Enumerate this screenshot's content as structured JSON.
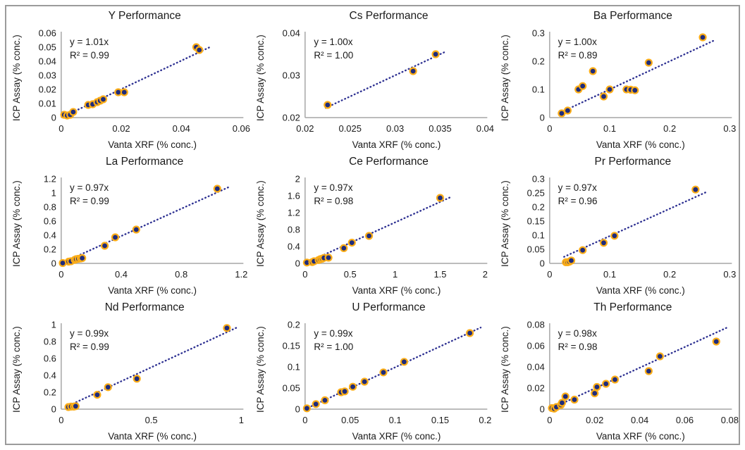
{
  "figure": {
    "background": "#ffffff",
    "border_color": "#9b9b9b"
  },
  "style": {
    "point_fill": "#1f2c7c",
    "point_ring": "#fbad18",
    "trendline_color": "#2e3192",
    "axis_color": "#a6a6a6",
    "text_color": "#1a1a1a"
  },
  "chart_data": [
    {
      "type": "scatter",
      "element": "Y",
      "title": "Y Performance",
      "equation": "y = 1.01x",
      "r_squared": "R² = 0.99",
      "slope": 1.01,
      "xlabel": "Vanta XRF (% conc.)",
      "ylabel": "ICP Assay (% conc.)",
      "xlim": [
        0,
        0.06
      ],
      "ylim": [
        0,
        0.06
      ],
      "xtick_values": [
        0,
        0.02,
        0.04,
        0.06
      ],
      "xtick_labels": [
        "0",
        "0.02",
        "0.04",
        "0.06"
      ],
      "ytick_values": [
        0,
        0.01,
        0.02,
        0.03,
        0.04,
        0.05,
        0.06
      ],
      "ytick_labels": [
        "0",
        "0.01",
        "0.02",
        "0.03",
        "0.04",
        "0.05",
        "0.06"
      ],
      "grid": false,
      "legend": false,
      "points": [
        [
          0.001,
          0.002
        ],
        [
          0.002,
          0.0015
        ],
        [
          0.003,
          0.002
        ],
        [
          0.004,
          0.004
        ],
        [
          0.009,
          0.009
        ],
        [
          0.0105,
          0.0095
        ],
        [
          0.012,
          0.011
        ],
        [
          0.013,
          0.012
        ],
        [
          0.014,
          0.013
        ],
        [
          0.019,
          0.018
        ],
        [
          0.021,
          0.018
        ],
        [
          0.045,
          0.05
        ],
        [
          0.046,
          0.048
        ]
      ]
    },
    {
      "type": "scatter",
      "element": "Cs",
      "title": "Cs Performance",
      "equation": "y = 1.00x",
      "r_squared": "R² = 1.00",
      "slope": 1.0,
      "xlabel": "Vanta XRF (% conc.)",
      "ylabel": "ICP Assay (% conc.)",
      "xlim": [
        0.02,
        0.04
      ],
      "ylim": [
        0.02,
        0.04
      ],
      "xtick_values": [
        0.02,
        0.025,
        0.03,
        0.035,
        0.04
      ],
      "xtick_labels": [
        "0.02",
        "0.025",
        "0.03",
        "0.035",
        "0.04"
      ],
      "ytick_values": [
        0.02,
        0.03,
        0.04
      ],
      "ytick_labels": [
        "0.02",
        "0.03",
        "0.04"
      ],
      "grid": false,
      "legend": false,
      "points": [
        [
          0.0225,
          0.023
        ],
        [
          0.032,
          0.031
        ],
        [
          0.0345,
          0.035
        ]
      ]
    },
    {
      "type": "scatter",
      "element": "Ba",
      "title": "Ba Performance",
      "equation": "y = 1.00x",
      "r_squared": "R² = 0.89",
      "slope": 1.0,
      "xlabel": "Vanta XRF (% conc.)",
      "ylabel": "ICP Assay (% conc.)",
      "xlim": [
        0,
        0.3
      ],
      "ylim": [
        0,
        0.3
      ],
      "xtick_values": [
        0,
        0.1,
        0.2,
        0.3
      ],
      "xtick_labels": [
        "0",
        "0.1",
        "0.2",
        "0.3"
      ],
      "ytick_values": [
        0,
        0.1,
        0.2,
        0.3
      ],
      "ytick_labels": [
        "0",
        "0.1",
        "0.2",
        "0.3"
      ],
      "grid": false,
      "legend": false,
      "points": [
        [
          0.02,
          0.015
        ],
        [
          0.03,
          0.025
        ],
        [
          0.048,
          0.1
        ],
        [
          0.055,
          0.112
        ],
        [
          0.072,
          0.165
        ],
        [
          0.09,
          0.075
        ],
        [
          0.1,
          0.1
        ],
        [
          0.128,
          0.1
        ],
        [
          0.135,
          0.099
        ],
        [
          0.142,
          0.097
        ],
        [
          0.165,
          0.195
        ],
        [
          0.255,
          0.285
        ]
      ]
    },
    {
      "type": "scatter",
      "element": "La",
      "title": "La Performance",
      "equation": "y = 0.97x",
      "r_squared": "R² = 0.99",
      "slope": 0.97,
      "xlabel": "Vanta XRF (% conc.)",
      "ylabel": "ICP Assay (% conc.)",
      "xlim": [
        0,
        1.2
      ],
      "ylim": [
        0,
        1.2
      ],
      "xtick_values": [
        0,
        0.4,
        0.8,
        1.2
      ],
      "xtick_labels": [
        "0",
        "0.4",
        "0.8",
        "1.2"
      ],
      "ytick_values": [
        0,
        0.2,
        0.4,
        0.6,
        0.8,
        1,
        1.2
      ],
      "ytick_labels": [
        "0",
        "0.2",
        "0.4",
        "0.6",
        "0.8",
        "1",
        "1.2"
      ],
      "grid": false,
      "legend": false,
      "points": [
        [
          0.01,
          0.005
        ],
        [
          0.05,
          0.025
        ],
        [
          0.065,
          0.03
        ],
        [
          0.09,
          0.05
        ],
        [
          0.1,
          0.06
        ],
        [
          0.115,
          0.065
        ],
        [
          0.13,
          0.07
        ],
        [
          0.14,
          0.075
        ],
        [
          0.29,
          0.25
        ],
        [
          0.36,
          0.37
        ],
        [
          0.5,
          0.48
        ],
        [
          1.04,
          1.06
        ]
      ]
    },
    {
      "type": "scatter",
      "element": "Ce",
      "title": "Ce Performance",
      "equation": "y = 0.97x",
      "r_squared": "R² = 0.98",
      "slope": 0.97,
      "xlabel": "Vanta XRF (% conc.)",
      "ylabel": "ICP Assay (% conc.)",
      "xlim": [
        0,
        2
      ],
      "ylim": [
        0,
        2
      ],
      "xtick_values": [
        0,
        0.5,
        1,
        1.5,
        2
      ],
      "xtick_labels": [
        "0",
        "0.5",
        "1",
        "1.5",
        "2"
      ],
      "ytick_values": [
        0,
        0.4,
        0.8,
        1.2,
        1.6,
        2
      ],
      "ytick_labels": [
        "0",
        "0.4",
        "0.8",
        "1.2",
        "1.6",
        "2"
      ],
      "grid": false,
      "legend": false,
      "points": [
        [
          0.02,
          0.02
        ],
        [
          0.08,
          0.03
        ],
        [
          0.1,
          0.05
        ],
        [
          0.15,
          0.08
        ],
        [
          0.17,
          0.1
        ],
        [
          0.19,
          0.11
        ],
        [
          0.21,
          0.13
        ],
        [
          0.26,
          0.135
        ],
        [
          0.43,
          0.36
        ],
        [
          0.52,
          0.49
        ],
        [
          0.71,
          0.65
        ],
        [
          1.5,
          1.55
        ]
      ]
    },
    {
      "type": "scatter",
      "element": "Pr",
      "title": "Pr Performance",
      "equation": "y = 0.97x",
      "r_squared": "R² = 0.96",
      "slope": 0.97,
      "xlabel": "Vanta XRF (% conc.)",
      "ylabel": "ICP Assay (% conc.)",
      "xlim": [
        0,
        0.3
      ],
      "ylim": [
        0,
        0.3
      ],
      "xtick_values": [
        0,
        0.1,
        0.2,
        0.3
      ],
      "xtick_labels": [
        "0",
        "0.1",
        "0.2",
        "0.3"
      ],
      "ytick_values": [
        0,
        0.05,
        0.1,
        0.15,
        0.2,
        0.25,
        0.3
      ],
      "ytick_labels": [
        "0",
        "0.05",
        "0.1",
        "0.15",
        "0.2",
        "0.25",
        "0.3"
      ],
      "grid": false,
      "legend": false,
      "points": [
        [
          0.027,
          0.004
        ],
        [
          0.03,
          0.004
        ],
        [
          0.033,
          0.006
        ],
        [
          0.036,
          0.01
        ],
        [
          0.055,
          0.047
        ],
        [
          0.09,
          0.073
        ],
        [
          0.108,
          0.098
        ],
        [
          0.243,
          0.262
        ]
      ]
    },
    {
      "type": "scatter",
      "element": "Nd",
      "title": "Nd Performance",
      "equation": "y = 0.99x",
      "r_squared": "R² = 0.99",
      "slope": 0.99,
      "xlabel": "Vanta XRF (% conc.)",
      "ylabel": "ICP Assay (% conc.)",
      "xlim": [
        0,
        1
      ],
      "ylim": [
        0,
        1
      ],
      "xtick_values": [
        0,
        0.5,
        1
      ],
      "xtick_labels": [
        "0",
        "0.5",
        "1"
      ],
      "ytick_values": [
        0,
        0.2,
        0.4,
        0.6,
        0.8,
        1
      ],
      "ytick_labels": [
        "0",
        "0.2",
        "0.4",
        "0.6",
        "0.8",
        "1"
      ],
      "grid": false,
      "legend": false,
      "points": [
        [
          0.04,
          0.025
        ],
        [
          0.055,
          0.03
        ],
        [
          0.07,
          0.03
        ],
        [
          0.08,
          0.035
        ],
        [
          0.2,
          0.17
        ],
        [
          0.26,
          0.26
        ],
        [
          0.42,
          0.36
        ],
        [
          0.92,
          0.96
        ]
      ]
    },
    {
      "type": "scatter",
      "element": "U",
      "title": "U Performance",
      "equation": "y = 0.99x",
      "r_squared": "R² = 1.00",
      "slope": 0.99,
      "xlabel": "Vanta XRF (% conc.)",
      "ylabel": "ICP Assay (% conc.)",
      "xlim": [
        0,
        0.2
      ],
      "ylim": [
        0,
        0.2
      ],
      "xtick_values": [
        0,
        0.05,
        0.1,
        0.15,
        0.2
      ],
      "xtick_labels": [
        "0",
        "0.05",
        "0.1",
        "0.15",
        "0.2"
      ],
      "ytick_values": [
        0,
        0.05,
        0.1,
        0.15,
        0.2
      ],
      "ytick_labels": [
        "0",
        "0.05",
        "0.1",
        "0.15",
        "0.2"
      ],
      "grid": false,
      "legend": false,
      "points": [
        [
          0.002,
          0.002
        ],
        [
          0.012,
          0.012
        ],
        [
          0.022,
          0.021
        ],
        [
          0.04,
          0.04
        ],
        [
          0.044,
          0.042
        ],
        [
          0.053,
          0.053
        ],
        [
          0.066,
          0.065
        ],
        [
          0.087,
          0.087
        ],
        [
          0.11,
          0.112
        ],
        [
          0.183,
          0.18
        ]
      ]
    },
    {
      "type": "scatter",
      "element": "Th",
      "title": "Th Performance",
      "equation": "y = 0.98x",
      "r_squared": "R² = 0.98",
      "slope": 0.98,
      "xlabel": "Vanta XRF (% conc.)",
      "ylabel": "ICP Assay (% conc.)",
      "xlim": [
        0,
        0.08
      ],
      "ylim": [
        0,
        0.08
      ],
      "xtick_values": [
        0,
        0.02,
        0.04,
        0.06,
        0.08
      ],
      "xtick_labels": [
        "0",
        "0.02",
        "0.04",
        "0.06",
        "0.08"
      ],
      "ytick_values": [
        0,
        0.02,
        0.04,
        0.06,
        0.08
      ],
      "ytick_labels": [
        "0",
        "0.02",
        "0.04",
        "0.06",
        "0.08"
      ],
      "grid": false,
      "legend": false,
      "points": [
        [
          0.001,
          0.001
        ],
        [
          0.002,
          0.0005
        ],
        [
          0.003,
          0.002
        ],
        [
          0.005,
          0.004
        ],
        [
          0.0055,
          0.006
        ],
        [
          0.007,
          0.012
        ],
        [
          0.011,
          0.009
        ],
        [
          0.02,
          0.015
        ],
        [
          0.021,
          0.021
        ],
        [
          0.025,
          0.024
        ],
        [
          0.029,
          0.028
        ],
        [
          0.044,
          0.036
        ],
        [
          0.049,
          0.05
        ],
        [
          0.074,
          0.064
        ]
      ]
    }
  ]
}
